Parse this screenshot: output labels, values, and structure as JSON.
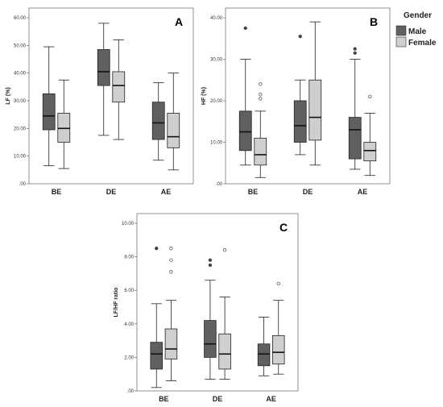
{
  "legend": {
    "title": "Gender",
    "entries": [
      {
        "name": "Male",
        "color": "#606060"
      },
      {
        "name": "Female",
        "color": "#cfcfcf"
      }
    ]
  },
  "chart_data": [
    {
      "type": "box",
      "panel_label": "A",
      "ylabel": "LF (%)",
      "ylim": [
        0,
        60
      ],
      "yticks": [
        ".00",
        "10.00",
        "20.00",
        "30.00",
        "40.00",
        "50.00",
        "60.00"
      ],
      "categories": [
        "BE",
        "DE",
        "AE"
      ],
      "series": [
        {
          "name": "Male",
          "boxes": [
            {
              "min": 6.5,
              "q1": 19.5,
              "median": 24.5,
              "q3": 32.5,
              "max": 49.5,
              "outliers": []
            },
            {
              "min": 17.5,
              "q1": 35.5,
              "median": 40.5,
              "q3": 48.5,
              "max": 58.0,
              "outliers": []
            },
            {
              "min": 8.5,
              "q1": 16.0,
              "median": 22.0,
              "q3": 29.5,
              "max": 36.5,
              "outliers": []
            }
          ]
        },
        {
          "name": "Female",
          "boxes": [
            {
              "min": 5.5,
              "q1": 15.0,
              "median": 20.0,
              "q3": 25.5,
              "max": 37.5,
              "outliers": []
            },
            {
              "min": 16.0,
              "q1": 29.5,
              "median": 35.5,
              "q3": 40.5,
              "max": 52.0,
              "outliers": []
            },
            {
              "min": 5.0,
              "q1": 13.0,
              "median": 17.0,
              "q3": 25.5,
              "max": 40.0,
              "outliers": []
            }
          ]
        }
      ]
    },
    {
      "type": "box",
      "panel_label": "B",
      "ylabel": "HF (%)",
      "ylim": [
        0,
        40
      ],
      "yticks": [
        ".00",
        "10.00",
        "20.00",
        "30.00",
        "40.00"
      ],
      "categories": [
        "BE",
        "DE",
        "AE"
      ],
      "series": [
        {
          "name": "Male",
          "boxes": [
            {
              "min": 4.5,
              "q1": 8.0,
              "median": 12.5,
              "q3": 17.5,
              "max": 30.0,
              "outliers": [
                37.5
              ]
            },
            {
              "min": 7.0,
              "q1": 10.0,
              "median": 14.0,
              "q3": 20.0,
              "max": 25.0,
              "outliers": [
                35.5
              ]
            },
            {
              "min": 3.5,
              "q1": 6.0,
              "median": 13.0,
              "q3": 16.0,
              "max": 30.0,
              "outliers": [
                31.5,
                32.5
              ]
            }
          ]
        },
        {
          "name": "Female",
          "boxes": [
            {
              "min": 1.5,
              "q1": 4.5,
              "median": 7.0,
              "q3": 11.0,
              "max": 17.5,
              "outliers": [
                20.5,
                21.5,
                24.0
              ]
            },
            {
              "min": 4.5,
              "q1": 10.5,
              "median": 16.0,
              "q3": 25.0,
              "max": 39.0,
              "outliers": []
            },
            {
              "min": 2.0,
              "q1": 5.5,
              "median": 8.0,
              "q3": 10.0,
              "max": 17.0,
              "outliers": [
                21.0
              ]
            }
          ]
        }
      ]
    },
    {
      "type": "box",
      "panel_label": "C",
      "ylabel": "LF/HF ratio",
      "ylim": [
        0,
        10
      ],
      "yticks": [
        ".00",
        "2.00",
        "4.00",
        "6.00",
        "8.00",
        "10.00"
      ],
      "categories": [
        "BE",
        "DE",
        "AE"
      ],
      "series": [
        {
          "name": "Male",
          "boxes": [
            {
              "min": 0.2,
              "q1": 1.3,
              "median": 2.2,
              "q3": 2.9,
              "max": 5.2,
              "outliers": [
                8.5
              ]
            },
            {
              "min": 0.7,
              "q1": 2.0,
              "median": 2.8,
              "q3": 4.2,
              "max": 6.6,
              "outliers": [
                7.5,
                7.8
              ]
            },
            {
              "min": 0.9,
              "q1": 1.5,
              "median": 2.2,
              "q3": 2.8,
              "max": 4.4,
              "outliers": []
            }
          ]
        },
        {
          "name": "Female",
          "boxes": [
            {
              "min": 0.6,
              "q1": 1.9,
              "median": 2.5,
              "q3": 3.7,
              "max": 5.4,
              "outliers": [
                7.1,
                7.8,
                8.5
              ]
            },
            {
              "min": 0.7,
              "q1": 1.3,
              "median": 2.2,
              "q3": 3.4,
              "max": 5.6,
              "outliers": [
                8.4
              ]
            },
            {
              "min": 1.0,
              "q1": 1.6,
              "median": 2.3,
              "q3": 3.3,
              "max": 5.4,
              "outliers": [
                6.4
              ]
            }
          ]
        }
      ]
    }
  ]
}
